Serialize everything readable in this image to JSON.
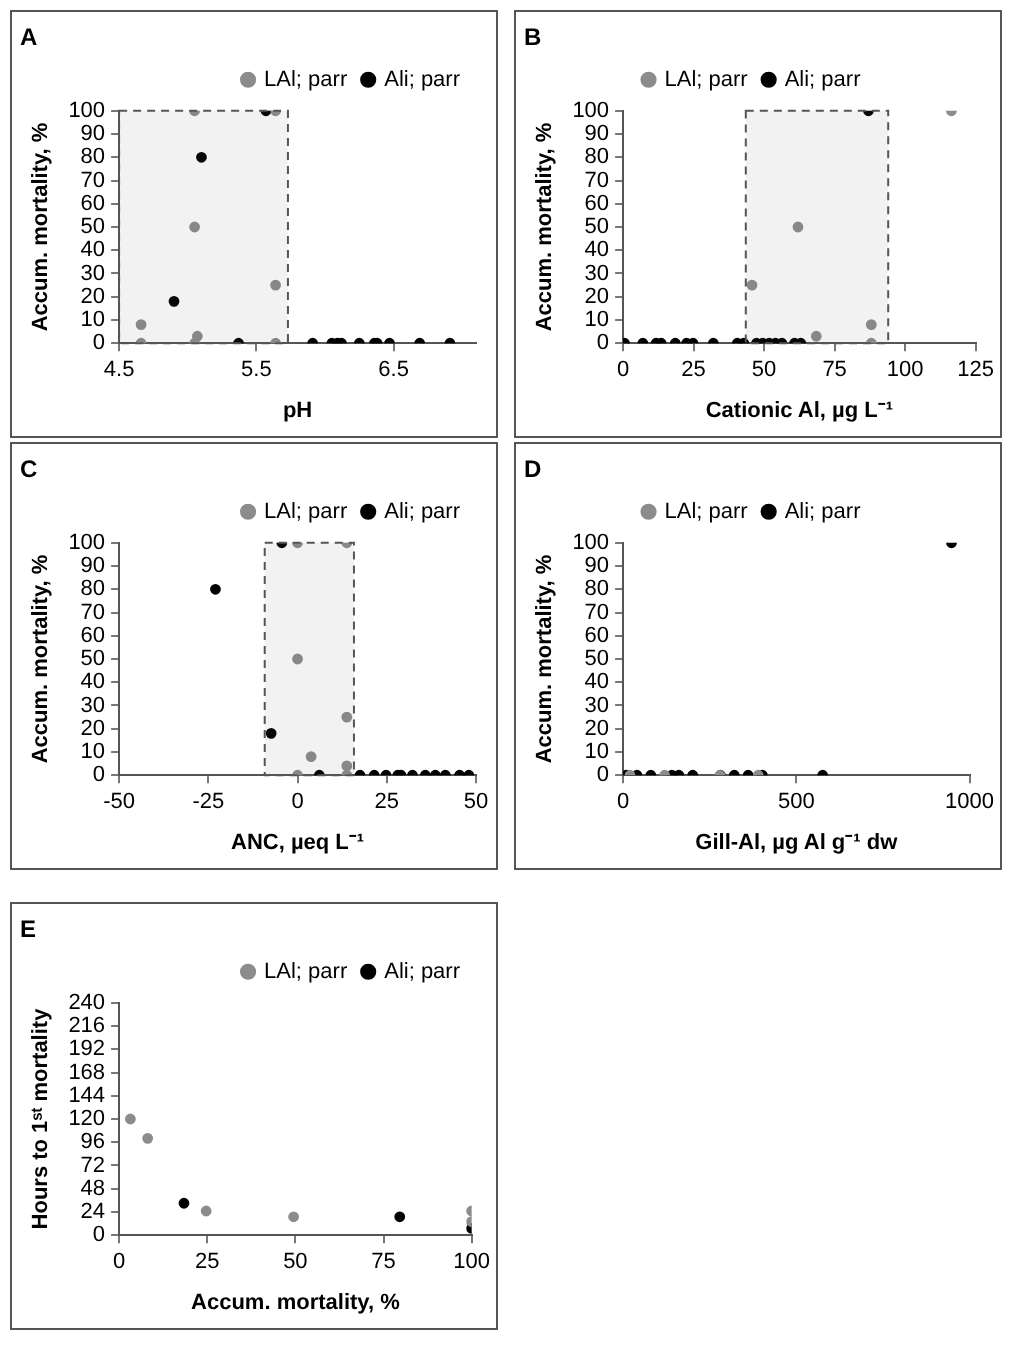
{
  "chart_data": [
    {
      "type": "scatter",
      "title": "A",
      "xlabel": "pH",
      "ylabel": "Accum. mortality, %",
      "xlim": [
        4.5,
        7.1
      ],
      "xticks": [
        4.5,
        5.5,
        6.5
      ],
      "ylim": [
        0,
        100
      ],
      "yticks": [
        0,
        10,
        20,
        30,
        40,
        50,
        60,
        70,
        80,
        90,
        100
      ],
      "legend": "top right",
      "marker": "circle",
      "bands": [
        {
          "axis": "x",
          "from": 4.5,
          "to": 5.73,
          "color": "#555555"
        }
      ],
      "series": [
        {
          "name": "LAl; parr",
          "color": "#8c8c8c",
          "x": [
            4.66,
            4.66,
            5.05,
            5.05,
            5.07,
            5.05,
            5.64,
            5.64,
            5.64
          ],
          "values": [
            8,
            0,
            100,
            50,
            3,
            0,
            100,
            25,
            0
          ]
        },
        {
          "name": "Ali; parr",
          "color": "#000000",
          "x": [
            4.9,
            5.1,
            5.57,
            5.37,
            5.91,
            6.05,
            6.09,
            6.12,
            6.25,
            6.36,
            6.38,
            6.47,
            6.69,
            6.91
          ],
          "values": [
            18,
            80,
            100,
            0,
            0,
            0,
            0,
            0,
            0,
            0,
            0,
            0,
            0,
            0
          ]
        }
      ]
    },
    {
      "type": "scatter",
      "title": "B",
      "xlabel": "Cationic Al, µg L⁻¹",
      "ylabel": "Accum. mortality, %",
      "xlim": [
        0,
        125
      ],
      "xticks": [
        0,
        25,
        50,
        75,
        100,
        125
      ],
      "ylim": [
        0,
        100
      ],
      "yticks": [
        0,
        10,
        20,
        30,
        40,
        50,
        60,
        70,
        80,
        90,
        100
      ],
      "legend": "top",
      "marker": "circle",
      "bands": [
        {
          "axis": "x",
          "from": 43.5,
          "to": 94,
          "color": "#555555"
        }
      ],
      "series": [
        {
          "name": "LAl; parr",
          "color": "#8c8c8c",
          "x": [
            45.7,
            62,
            68.5,
            88,
            116.4,
            88
          ],
          "values": [
            25,
            50,
            3,
            8,
            100,
            0
          ]
        },
        {
          "name": "Ali; parr",
          "color": "#000000",
          "x": [
            87,
            0.5,
            7,
            11.7,
            13.5,
            18.5,
            22.5,
            24.8,
            32,
            40.5,
            42.8,
            47.3,
            49.5,
            51.8,
            54,
            56.3,
            60.8,
            63
          ],
          "values": [
            100,
            0,
            0,
            0,
            0,
            0,
            0,
            0,
            0,
            0,
            0,
            0,
            0,
            0,
            0,
            0,
            0,
            0
          ]
        }
      ]
    },
    {
      "type": "scatter",
      "title": "C",
      "xlabel": "ANC, µeq L⁻¹",
      "ylabel": "Accum. mortality, %",
      "xlim": [
        -50,
        50
      ],
      "xticks": [
        -50,
        -25,
        0,
        25,
        50
      ],
      "ylim": [
        0,
        100
      ],
      "yticks": [
        0,
        10,
        20,
        30,
        40,
        50,
        60,
        70,
        80,
        90,
        100
      ],
      "legend": "top right",
      "marker": "circle",
      "bands": [
        {
          "axis": "x",
          "from": -9.2,
          "to": 15.8,
          "color": "#555555"
        }
      ],
      "series": [
        {
          "name": "LAl; parr",
          "color": "#8c8c8c",
          "x": [
            0,
            13.8,
            0,
            3.8,
            13.8,
            13.8,
            0,
            13.8
          ],
          "values": [
            100,
            100,
            50,
            8,
            25,
            4,
            0,
            0
          ]
        },
        {
          "name": "Ali; parr",
          "color": "#000000",
          "x": [
            -23,
            -4.4,
            -7.4,
            6.1,
            17.5,
            21.5,
            24.8,
            28.1,
            29,
            32.2,
            35.8,
            38.6,
            41.4,
            45.4,
            48
          ],
          "values": [
            80,
            100,
            18,
            0,
            0,
            0,
            0,
            0,
            0,
            0,
            0,
            0,
            0,
            0,
            0
          ]
        }
      ]
    },
    {
      "type": "scatter",
      "title": "D",
      "xlabel": "Gill-Al, µg Al g⁻¹ dw",
      "ylabel": "Accum. mortality, %",
      "xlim": [
        0,
        1000
      ],
      "xticks": [
        0,
        500,
        1000
      ],
      "ylim": [
        0,
        100
      ],
      "yticks": [
        0,
        10,
        20,
        30,
        40,
        50,
        60,
        70,
        80,
        90,
        100
      ],
      "legend": "top",
      "marker": "circle",
      "series": [
        {
          "name": "LAl; parr",
          "color": "#8c8c8c",
          "x": [
            20,
            120,
            280,
            390
          ],
          "values": [
            0,
            0,
            0,
            0
          ]
        },
        {
          "name": "Ali; parr",
          "color": "#000000",
          "x": [
            948,
            10,
            40,
            80,
            141,
            161,
            201,
            281,
            321,
            361,
            402,
            576
          ],
          "values": [
            100,
            0,
            0,
            0,
            0,
            0,
            0,
            0,
            0,
            0,
            0,
            0
          ]
        }
      ]
    },
    {
      "type": "scatter",
      "title": "E",
      "xlabel": "Accum. mortality, %",
      "ylabel": "Hours to 1ˢᵗ mortality",
      "xlim": [
        0,
        100
      ],
      "xticks": [
        0,
        25,
        50,
        75,
        100
      ],
      "ylim": [
        0,
        240
      ],
      "yticks": [
        0,
        24,
        48,
        72,
        96,
        120,
        144,
        168,
        192,
        216,
        240
      ],
      "legend": "top right",
      "marker": "circle",
      "series": [
        {
          "name": "LAl; parr",
          "color": "#8c8c8c",
          "x": [
            3.2,
            8.1,
            24.7,
            49.5,
            100,
            100
          ],
          "values": [
            120,
            100,
            25,
            19,
            25,
            14
          ]
        },
        {
          "name": "Ali; parr",
          "color": "#000000",
          "x": [
            18.4,
            79.6,
            100
          ],
          "values": [
            33,
            19,
            7
          ]
        }
      ]
    }
  ]
}
